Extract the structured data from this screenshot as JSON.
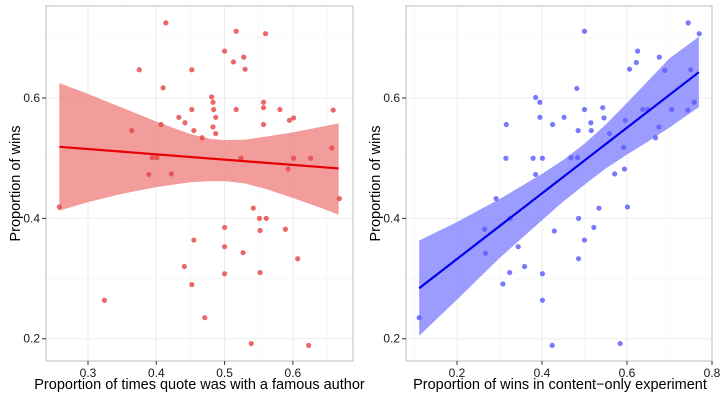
{
  "chart_data": [
    {
      "type": "scatter",
      "id": "left",
      "title": "",
      "xlabel": "Proportion of times quote was with a famous author",
      "ylabel": "Proportion of wins",
      "xlim": [
        0.2385,
        0.688
      ],
      "ylim": [
        0.163,
        0.753
      ],
      "xticks": [
        0.3,
        0.4,
        0.5,
        0.6
      ],
      "xtick_labels": [
        "0.3",
        "0.4",
        "0.5",
        "0.6"
      ],
      "yticks": [
        0.2,
        0.4,
        0.6
      ],
      "ytick_labels": [
        "0.2",
        "0.4",
        "0.6"
      ],
      "grid": true,
      "colors": {
        "point": "#e84545",
        "line": "#e60000",
        "band": "#f08080"
      },
      "points": [
        [
          0.414,
          0.725
        ],
        [
          0.375,
          0.647
        ],
        [
          0.452,
          0.647
        ],
        [
          0.41,
          0.617
        ],
        [
          0.452,
          0.581
        ],
        [
          0.433,
          0.568
        ],
        [
          0.442,
          0.559
        ],
        [
          0.407,
          0.556
        ],
        [
          0.364,
          0.546
        ],
        [
          0.455,
          0.546
        ],
        [
          0.467,
          0.534
        ],
        [
          0.394,
          0.501
        ],
        [
          0.401,
          0.501
        ],
        [
          0.389,
          0.473
        ],
        [
          0.422,
          0.474
        ],
        [
          0.517,
          0.711
        ],
        [
          0.56,
          0.707
        ],
        [
          0.5,
          0.678
        ],
        [
          0.513,
          0.66
        ],
        [
          0.528,
          0.668
        ],
        [
          0.53,
          0.648
        ],
        [
          0.481,
          0.602
        ],
        [
          0.483,
          0.593
        ],
        [
          0.484,
          0.581
        ],
        [
          0.487,
          0.568
        ],
        [
          0.483,
          0.552
        ],
        [
          0.487,
          0.541
        ],
        [
          0.517,
          0.581
        ],
        [
          0.557,
          0.593
        ],
        [
          0.557,
          0.584
        ],
        [
          0.581,
          0.581
        ],
        [
          0.557,
          0.556
        ],
        [
          0.595,
          0.563
        ],
        [
          0.601,
          0.567
        ],
        [
          0.659,
          0.58
        ],
        [
          0.524,
          0.5
        ],
        [
          0.601,
          0.5
        ],
        [
          0.626,
          0.5
        ],
        [
          0.657,
          0.517
        ],
        [
          0.593,
          0.482
        ],
        [
          0.258,
          0.419
        ],
        [
          0.455,
          0.364
        ],
        [
          0.441,
          0.32
        ],
        [
          0.452,
          0.29
        ],
        [
          0.324,
          0.264
        ],
        [
          0.471,
          0.235
        ],
        [
          0.668,
          0.433
        ],
        [
          0.542,
          0.417
        ],
        [
          0.551,
          0.4
        ],
        [
          0.561,
          0.4
        ],
        [
          0.5,
          0.385
        ],
        [
          0.552,
          0.38
        ],
        [
          0.589,
          0.382
        ],
        [
          0.5,
          0.353
        ],
        [
          0.527,
          0.343
        ],
        [
          0.607,
          0.333
        ],
        [
          0.5,
          0.308
        ],
        [
          0.552,
          0.31
        ],
        [
          0.539,
          0.192
        ],
        [
          0.623,
          0.189
        ]
      ],
      "fit": {
        "x": [
          0.258,
          0.667
        ],
        "y": [
          0.519,
          0.483
        ]
      },
      "band": {
        "x": [
          0.258,
          0.3,
          0.35,
          0.4,
          0.45,
          0.48,
          0.5,
          0.53,
          0.56,
          0.6,
          0.64,
          0.667
        ],
        "upper": [
          0.625,
          0.607,
          0.584,
          0.561,
          0.54,
          0.532,
          0.53,
          0.531,
          0.536,
          0.543,
          0.552,
          0.558
        ],
        "lower": [
          0.413,
          0.427,
          0.441,
          0.452,
          0.46,
          0.462,
          0.462,
          0.458,
          0.449,
          0.434,
          0.418,
          0.406
        ]
      }
    },
    {
      "type": "scatter",
      "id": "right",
      "title": "",
      "xlabel": "Proportion of wins in content−only experiment",
      "ylabel": "Proportion of wins",
      "xlim": [
        0.08,
        0.8
      ],
      "ylim": [
        0.163,
        0.753
      ],
      "xticks": [
        0.2,
        0.4,
        0.6,
        0.8
      ],
      "xtick_labels": [
        "0.2",
        "0.4",
        "0.6",
        "0.8"
      ],
      "yticks": [
        0.2,
        0.4,
        0.6
      ],
      "ytick_labels": [
        "0.2",
        "0.4",
        "0.6"
      ],
      "grid": true,
      "colors": {
        "point": "#5c5cff",
        "line": "#0000ee",
        "band": "#8080ff"
      },
      "points": [
        [
          0.385,
          0.601
        ],
        [
          0.395,
          0.593
        ],
        [
          0.395,
          0.568
        ],
        [
          0.316,
          0.556
        ],
        [
          0.425,
          0.556
        ],
        [
          0.452,
          0.568
        ],
        [
          0.315,
          0.5
        ],
        [
          0.379,
          0.5
        ],
        [
          0.401,
          0.5
        ],
        [
          0.385,
          0.473
        ],
        [
          0.292,
          0.433
        ],
        [
          0.5,
          0.711
        ],
        [
          0.744,
          0.725
        ],
        [
          0.77,
          0.707
        ],
        [
          0.625,
          0.678
        ],
        [
          0.622,
          0.659
        ],
        [
          0.606,
          0.648
        ],
        [
          0.676,
          0.668
        ],
        [
          0.689,
          0.646
        ],
        [
          0.75,
          0.647
        ],
        [
          0.482,
          0.616
        ],
        [
          0.758,
          0.593
        ],
        [
          0.743,
          0.58
        ],
        [
          0.705,
          0.581
        ],
        [
          0.637,
          0.581
        ],
        [
          0.649,
          0.581
        ],
        [
          0.5,
          0.581
        ],
        [
          0.543,
          0.584
        ],
        [
          0.546,
          0.567
        ],
        [
          0.515,
          0.559
        ],
        [
          0.485,
          0.546
        ],
        [
          0.516,
          0.546
        ],
        [
          0.596,
          0.563
        ],
        [
          0.559,
          0.541
        ],
        [
          0.675,
          0.552
        ],
        [
          0.667,
          0.534
        ],
        [
          0.592,
          0.518
        ],
        [
          0.468,
          0.501
        ],
        [
          0.484,
          0.501
        ],
        [
          0.594,
          0.482
        ],
        [
          0.571,
          0.474
        ],
        [
          0.534,
          0.417
        ],
        [
          0.601,
          0.419
        ],
        [
          0.486,
          0.4
        ],
        [
          0.522,
          0.385
        ],
        [
          0.429,
          0.379
        ],
        [
          0.5,
          0.364
        ],
        [
          0.265,
          0.382
        ],
        [
          0.325,
          0.4
        ],
        [
          0.267,
          0.342
        ],
        [
          0.344,
          0.353
        ],
        [
          0.486,
          0.333
        ],
        [
          0.359,
          0.32
        ],
        [
          0.324,
          0.31
        ],
        [
          0.401,
          0.308
        ],
        [
          0.308,
          0.291
        ],
        [
          0.401,
          0.264
        ],
        [
          0.111,
          0.235
        ],
        [
          0.424,
          0.189
        ],
        [
          0.584,
          0.192
        ]
      ],
      "fit": {
        "x": [
          0.111,
          0.769
        ],
        "y": [
          0.284,
          0.643
        ]
      },
      "band": {
        "x": [
          0.111,
          0.2,
          0.3,
          0.4,
          0.45,
          0.5,
          0.55,
          0.6,
          0.65,
          0.7,
          0.769
        ],
        "upper": [
          0.363,
          0.394,
          0.432,
          0.474,
          0.497,
          0.524,
          0.556,
          0.592,
          0.629,
          0.666,
          0.702
        ],
        "lower": [
          0.205,
          0.265,
          0.334,
          0.397,
          0.428,
          0.456,
          0.483,
          0.506,
          0.528,
          0.551,
          0.585
        ]
      }
    }
  ]
}
